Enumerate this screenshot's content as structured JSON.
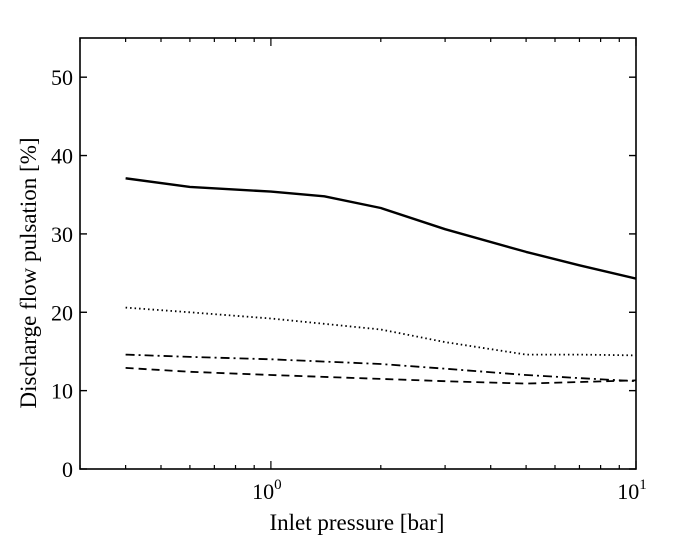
{
  "chart_data": {
    "type": "line",
    "xscale": "log",
    "xlim": [
      0.3,
      10
    ],
    "ylim": [
      0,
      55
    ],
    "xlabel": "Inlet pressure [bar]",
    "ylabel": "Discharge flow pulsation [%]",
    "grid": false,
    "legend": "none",
    "x_ticks": [
      {
        "value": 1,
        "base": "10",
        "exp": "0"
      },
      {
        "value": 10,
        "base": "10",
        "exp": "1"
      }
    ],
    "y_ticks": [
      {
        "value": 0,
        "label": "0"
      },
      {
        "value": 10,
        "label": "10"
      },
      {
        "value": 20,
        "label": "20"
      },
      {
        "value": 30,
        "label": "30"
      },
      {
        "value": 40,
        "label": "40"
      },
      {
        "value": 50,
        "label": "50"
      }
    ],
    "series": [
      {
        "style": "solid",
        "x": [
          0.4,
          0.6,
          1.0,
          1.4,
          2.0,
          3.0,
          5.0,
          7.0,
          10.0
        ],
        "y": [
          37.1,
          36.0,
          35.4,
          34.8,
          33.3,
          30.6,
          27.7,
          26.0,
          24.3
        ]
      },
      {
        "style": "dotted",
        "x": [
          0.4,
          0.6,
          1.0,
          2.0,
          3.0,
          5.0,
          7.0,
          10.0
        ],
        "y": [
          20.6,
          20.0,
          19.2,
          17.8,
          16.2,
          14.6,
          14.6,
          14.5
        ]
      },
      {
        "style": "dashdot",
        "x": [
          0.4,
          0.6,
          1.0,
          2.0,
          3.0,
          5.0,
          7.0,
          10.0
        ],
        "y": [
          14.6,
          14.3,
          14.0,
          13.4,
          12.8,
          12.0,
          11.6,
          11.2
        ]
      },
      {
        "style": "dashed",
        "x": [
          0.4,
          0.6,
          1.0,
          2.0,
          3.0,
          5.0,
          7.0,
          10.0
        ],
        "y": [
          12.9,
          12.4,
          12.0,
          11.5,
          11.2,
          10.9,
          11.1,
          11.3
        ]
      }
    ]
  }
}
